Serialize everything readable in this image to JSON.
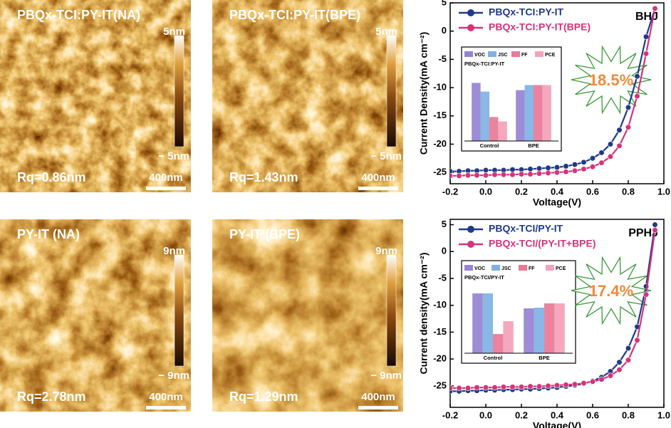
{
  "afm_panels": [
    {
      "title": "PBQx-TCI:PY-IT(NA)",
      "rq": "Rq=0.86nm",
      "scale_max": "5nm",
      "scale_min": "− 5nm",
      "scale_bar": "400nm"
    },
    {
      "title": "PBQx-TCI:PY-IT(BPE)",
      "rq": "Rq=1.43nm",
      "scale_max": "5nm",
      "scale_min": "− 5nm",
      "scale_bar": "400nm"
    },
    {
      "title": "PY-IT (NA)",
      "rq": "Rq=2.78nm",
      "scale_max": "9nm",
      "scale_min": "− 9nm",
      "scale_bar": "400nm"
    },
    {
      "title": "PY-IT (BPE)",
      "rq": "Rq=1.29nm",
      "scale_max": "9nm",
      "scale_min": "− 9nm",
      "scale_bar": "400nm"
    }
  ],
  "chart_data": [
    {
      "type": "line",
      "xlabel": "Voltage(V)",
      "ylabel": "Current Density(mA cm⁻²)",
      "annotations": [
        "BHJ",
        "18.5%"
      ],
      "x": [
        -0.2,
        -0.15,
        -0.1,
        -0.05,
        0,
        0.05,
        0.1,
        0.15,
        0.2,
        0.25,
        0.3,
        0.35,
        0.4,
        0.45,
        0.5,
        0.55,
        0.6,
        0.65,
        0.7,
        0.75,
        0.8,
        0.85,
        0.9,
        0.95
      ],
      "series": [
        {
          "name": "PBQx-TCI:PY-IT",
          "color": "#1f3a8a",
          "values": [
            -24.8,
            -24.8,
            -24.7,
            -24.7,
            -24.6,
            -24.6,
            -24.6,
            -24.5,
            -24.5,
            -24.4,
            -24.3,
            -24.2,
            -24.1,
            -23.9,
            -23.6,
            -23.2,
            -22.5,
            -21.5,
            -20.0,
            -17.5,
            -13.5,
            -8.0,
            -1.0,
            4
          ]
        },
        {
          "name": "PBQx-TCI:PY-IT(BPE)",
          "color": "#d6337a",
          "values": [
            -25.6,
            -25.6,
            -25.5,
            -25.5,
            -25.5,
            -25.4,
            -25.4,
            -25.4,
            -25.3,
            -25.3,
            -25.2,
            -25.1,
            -25.0,
            -24.9,
            -24.7,
            -24.4,
            -24.0,
            -23.3,
            -22.2,
            -20.3,
            -17.0,
            -11.5,
            -4.0,
            4
          ]
        }
      ],
      "xlim": [
        -0.2,
        1.0
      ],
      "ylim": [
        -27,
        5
      ],
      "xticks": [
        -0.2,
        {
          "value": 0,
          "label": "0.0"
        },
        0.2,
        0.4,
        0.6,
        0.8,
        {
          "value": 1,
          "label": "1.0"
        }
      ],
      "yticks": [
        5,
        0,
        -5,
        -10,
        -15,
        -20,
        -25
      ],
      "inset": {
        "type": "bar",
        "title": "PBQx-TCI:PY-IT",
        "categories": [
          "Control",
          "BPE"
        ],
        "ylim": [
          0,
          100
        ],
        "series": [
          {
            "name": "VOC",
            "color": "#6a4fc0",
            "values": [
              80,
              70
            ]
          },
          {
            "name": "JSC",
            "color": "#4a90d9",
            "values": [
              68,
              77
            ]
          },
          {
            "name": "FF",
            "color": "#e0406a",
            "values": [
              33,
              77
            ]
          },
          {
            "name": "PCE",
            "color": "#f07a9a",
            "values": [
              27,
              77
            ]
          }
        ]
      }
    },
    {
      "type": "line",
      "xlabel": "Voltage(V)",
      "ylabel": "Current density(mA cm⁻²)",
      "annotations": [
        "PPHJ",
        "17.4%"
      ],
      "x": [
        -0.2,
        -0.15,
        -0.1,
        -0.05,
        0,
        0.05,
        0.1,
        0.15,
        0.2,
        0.25,
        0.3,
        0.35,
        0.4,
        0.45,
        0.5,
        0.55,
        0.6,
        0.65,
        0.7,
        0.75,
        0.8,
        0.85,
        0.9,
        0.95
      ],
      "series": [
        {
          "name": "PBQx-TCI/PY-IT",
          "color": "#1f3a8a",
          "values": [
            -26.0,
            -26.0,
            -25.9,
            -25.9,
            -25.8,
            -25.8,
            -25.7,
            -25.7,
            -25.6,
            -25.6,
            -25.5,
            -25.4,
            -25.3,
            -25.1,
            -24.9,
            -24.6,
            -24.1,
            -23.4,
            -22.3,
            -20.6,
            -18.0,
            -14.0,
            -6.5,
            5
          ]
        },
        {
          "name": "PBQx-TCI/(PY-IT+BPE)",
          "color": "#d6337a",
          "values": [
            -25.4,
            -25.4,
            -25.4,
            -25.3,
            -25.3,
            -25.3,
            -25.2,
            -25.2,
            -25.2,
            -25.1,
            -25.1,
            -25.0,
            -24.9,
            -24.8,
            -24.7,
            -24.5,
            -24.2,
            -23.8,
            -23.1,
            -22.0,
            -20.2,
            -16.5,
            -8.0,
            4
          ]
        }
      ],
      "xlim": [
        -0.2,
        1.0
      ],
      "ylim": [
        -29,
        6
      ],
      "xticks": [
        -0.2,
        {
          "value": 0,
          "label": "0.0"
        },
        0.2,
        0.4,
        0.6,
        0.8,
        {
          "value": 1,
          "label": "1.0"
        }
      ],
      "yticks": [
        5,
        0,
        -5,
        -10,
        -15,
        -20,
        -25
      ],
      "inset": {
        "type": "bar",
        "title": "PBQx-TCI/PY-IT",
        "categories": [
          "Control",
          "BPE"
        ],
        "ylim": [
          0,
          100
        ],
        "series": [
          {
            "name": "VOC",
            "color": "#6a4fc0",
            "values": [
              84,
              63
            ]
          },
          {
            "name": "JSC",
            "color": "#4a90d9",
            "values": [
              84,
              64
            ]
          },
          {
            "name": "FF",
            "color": "#e0406a",
            "values": [
              27,
              70
            ]
          },
          {
            "name": "PCE",
            "color": "#f07a9a",
            "values": [
              45,
              70
            ]
          }
        ]
      }
    }
  ]
}
